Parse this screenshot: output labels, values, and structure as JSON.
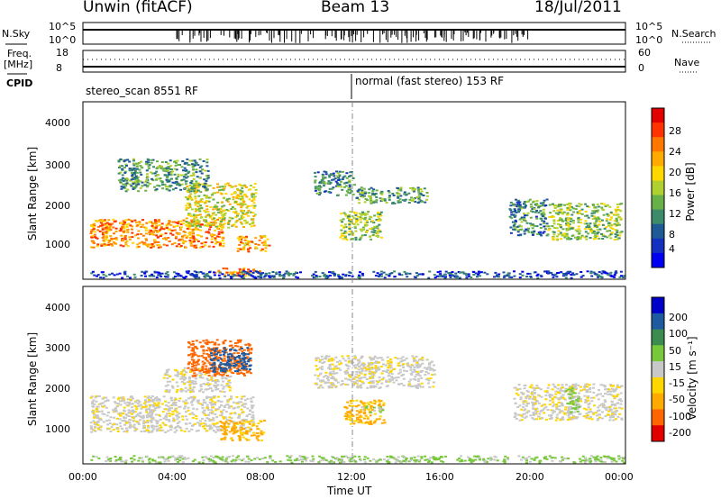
{
  "header": {
    "station": "Unwin (fitACF)",
    "beam": "Beam 13",
    "date": "18/Jul/2011"
  },
  "strip": {
    "nsky_label": "N.Sky",
    "nsky_ticks": [
      "10^5",
      "10^0"
    ],
    "nsearch_label": "N.Search",
    "nsearch_ticks": [
      "10^5",
      "10^0"
    ],
    "freq_label": "Freq.",
    "freq_unit": "[MHz]",
    "freq_ticks": [
      "18",
      "8"
    ],
    "nave_label": "Nave",
    "nave_ticks": [
      "60",
      "0"
    ],
    "cpid_label": "CPID",
    "cpid_segments": [
      "stereo_scan 8551 RF",
      "normal (fast stereo) 153 RF"
    ]
  },
  "time_axis": {
    "label": "Time UT",
    "ticks": [
      "00:00",
      "04:00",
      "08:00",
      "12:00",
      "16:00",
      "20:00",
      "00:00"
    ]
  },
  "chart_data": [
    {
      "type": "heatmap",
      "title": "Power",
      "ylabel": "Slant Range [km]",
      "xlabel": "Time UT",
      "xlim": [
        0,
        24
      ],
      "ylim": [
        200,
        4600
      ],
      "ytick_labels": [
        "4000",
        "3000",
        "2000",
        "1000"
      ],
      "colorbar_label": "Power [dB]",
      "colorbar_ticks": [
        "28",
        "24",
        "20",
        "16",
        "12",
        "8",
        "4"
      ],
      "colorbar_colors": [
        "#e00000",
        "#ff3300",
        "#ff7700",
        "#ffaa00",
        "#ffd700",
        "#b0d030",
        "#68b048",
        "#3c8c6c",
        "#1e5a96",
        "#1430c0",
        "#0000f0"
      ],
      "regions": [
        {
          "t0": 0.3,
          "t1": 6.2,
          "r0": 1000,
          "r1": 1700,
          "level": 0.75
        },
        {
          "t0": 4.5,
          "t1": 7.6,
          "r0": 1500,
          "r1": 2600,
          "level": 0.55
        },
        {
          "t0": 1.5,
          "t1": 5.5,
          "r0": 2400,
          "r1": 3200,
          "level": 0.35
        },
        {
          "t0": 6.8,
          "t1": 8.2,
          "r0": 900,
          "r1": 1300,
          "level": 0.7
        },
        {
          "t0": 5.8,
          "t1": 8.0,
          "r0": 300,
          "r1": 500,
          "level": 0.75
        },
        {
          "t0": 10.2,
          "t1": 12.0,
          "r0": 2300,
          "r1": 2900,
          "level": 0.3
        },
        {
          "t0": 12.0,
          "t1": 15.2,
          "r0": 2100,
          "r1": 2500,
          "level": 0.35
        },
        {
          "t0": 11.3,
          "t1": 13.2,
          "r0": 1200,
          "r1": 1900,
          "level": 0.45
        },
        {
          "t0": 18.8,
          "t1": 20.5,
          "r0": 1300,
          "r1": 2200,
          "level": 0.3
        },
        {
          "t0": 20.5,
          "t1": 23.8,
          "r0": 1200,
          "r1": 2100,
          "level": 0.45
        },
        {
          "t0": 0.3,
          "t1": 23.9,
          "r0": 250,
          "r1": 420,
          "level": 0.15
        }
      ]
    },
    {
      "type": "heatmap",
      "title": "Velocity",
      "ylabel": "Slant Range [km]",
      "xlabel": "Time UT",
      "xlim": [
        0,
        24
      ],
      "ylim": [
        200,
        4600
      ],
      "ytick_labels": [
        "4000",
        "3000",
        "2000",
        "1000"
      ],
      "colorbar_label": "Velocity [m s⁻¹]",
      "colorbar_ticks": [
        "200",
        "100",
        "50",
        "15",
        "-15",
        "-50",
        "-100",
        "-200"
      ],
      "colorbar_colors": [
        "#0000c8",
        "#1e5aa0",
        "#3c8c50",
        "#78c83c",
        "#c8c8c8",
        "#ffd700",
        "#ffaa00",
        "#ff6600",
        "#e00000"
      ],
      "regions": [
        {
          "t0": 0.3,
          "t1": 7.5,
          "r0": 1000,
          "r1": 1900,
          "value": -5
        },
        {
          "t0": 3.5,
          "t1": 6.5,
          "r0": 2000,
          "r1": 2600,
          "value": -5
        },
        {
          "t0": 4.6,
          "t1": 7.4,
          "r0": 2400,
          "r1": 3300,
          "value": -160
        },
        {
          "t0": 5.6,
          "t1": 7.4,
          "r0": 2500,
          "r1": 3100,
          "value": 180
        },
        {
          "t0": 6.0,
          "t1": 8.0,
          "r0": 800,
          "r1": 1300,
          "value": -60
        },
        {
          "t0": 10.2,
          "t1": 15.5,
          "r0": 2100,
          "r1": 2900,
          "value": -5
        },
        {
          "t0": 11.5,
          "t1": 13.3,
          "r0": 1200,
          "r1": 1800,
          "value": -60
        },
        {
          "t0": 12.3,
          "t1": 13.3,
          "r0": 1500,
          "r1": 1650,
          "value": 30
        },
        {
          "t0": 19.0,
          "t1": 23.8,
          "r0": 1300,
          "r1": 2200,
          "value": -5
        },
        {
          "t0": 21.3,
          "t1": 21.9,
          "r0": 1500,
          "r1": 2100,
          "value": 30
        },
        {
          "t0": 0.3,
          "t1": 23.9,
          "r0": 250,
          "r1": 420,
          "value": 20
        }
      ]
    }
  ]
}
